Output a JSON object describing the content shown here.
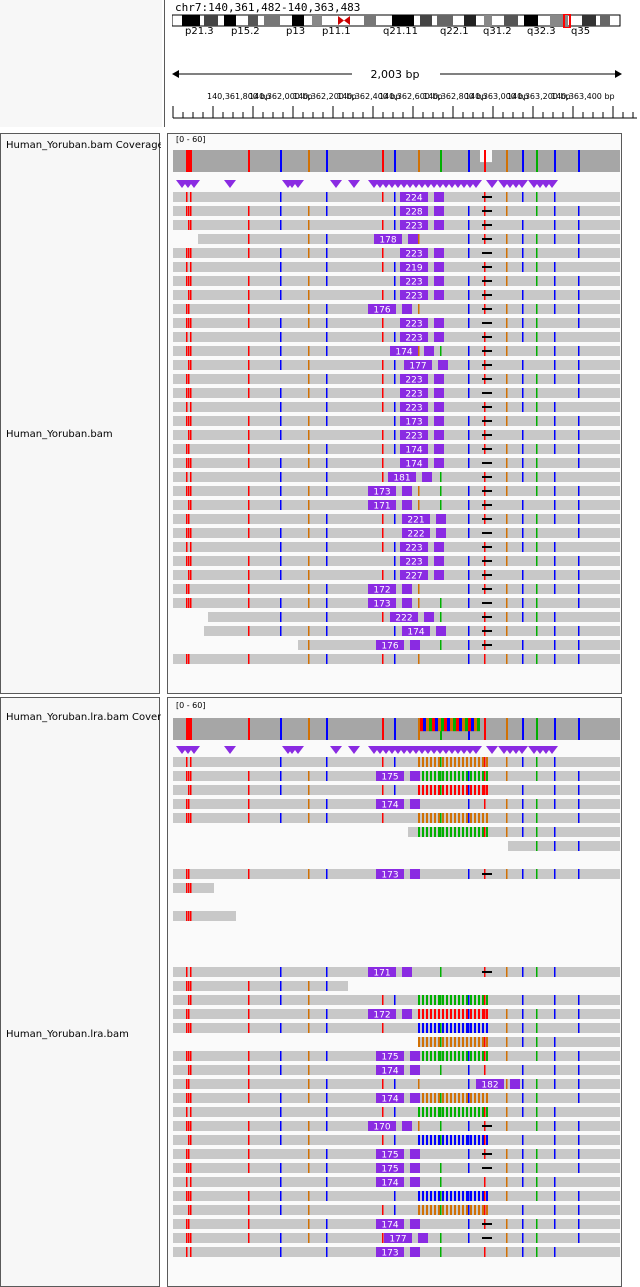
{
  "header": {
    "locus": "chr7:140,361,482-140,363,483",
    "bands": [
      "p21.3",
      "p15.2",
      "p13",
      "p11.1",
      "q21.11",
      "q22.1",
      "q31.2",
      "q32.3",
      "q35"
    ],
    "span": "2,003 bp",
    "ruler_ticks": [
      "140,361,800 bp",
      "140,362,000 bp",
      "140,362,200 bp",
      "140,362,400 bp",
      "140,362,600 bp",
      "140,362,800 bp",
      "140,363,000 bp",
      "140,363,200 bp",
      "140,363,400 bp"
    ]
  },
  "colors": {
    "read": "#c8c8c8",
    "insertion": "#8a2be2",
    "mismatch_A": "#00b000",
    "mismatch_C": "#0000ff",
    "mismatch_G": "#d17105",
    "mismatch_T": "#ff0000",
    "coverage": "#a6a6a6"
  },
  "tracks": [
    {
      "coverage_name": "Human_Yoruban.bam Coverage",
      "coverage_range": "[0 - 60]",
      "alignment_name": "Human_Yoruban.bam",
      "insertion_labels": [
        "224",
        "228",
        "223",
        "178",
        "223",
        "219",
        "223",
        "223",
        "176",
        "223",
        "223",
        "174",
        "177",
        "223",
        "223",
        "223",
        "173",
        "223",
        "174",
        "174",
        "181",
        "173",
        "171",
        "221",
        "222",
        "223",
        "223",
        "227",
        "172",
        "173",
        "222",
        "174",
        "176"
      ]
    },
    {
      "coverage_name": "Human_Yoruban.lra.bam Coverage",
      "coverage_range": "[0 - 60]",
      "alignment_name": "Human_Yoruban.lra.bam",
      "insertion_labels": [
        "175",
        "174",
        "173",
        "171",
        "172",
        "175",
        "174",
        "182",
        "174",
        "170",
        "175",
        "175",
        "174",
        "174",
        "177",
        "173"
      ]
    }
  ]
}
